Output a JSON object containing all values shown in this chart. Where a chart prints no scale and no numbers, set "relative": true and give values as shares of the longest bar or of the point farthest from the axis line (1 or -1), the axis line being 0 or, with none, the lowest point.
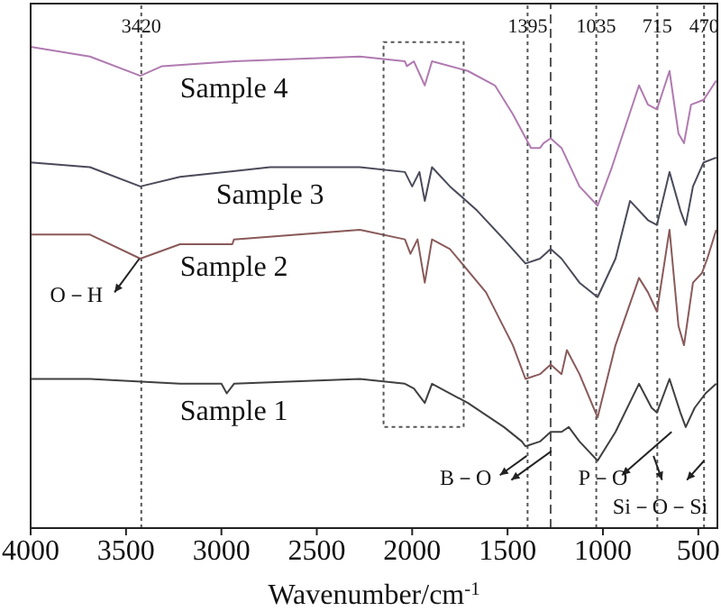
{
  "chart_data": {
    "type": "line",
    "relative": true,
    "xlabel": "Wavenumber/cm$^{-1}$",
    "xlim": [
      4000,
      400
    ],
    "xticks": [
      4000,
      3500,
      3000,
      2500,
      2000,
      1500,
      1000,
      500
    ],
    "tick_labels": "x",
    "grid": false,
    "legend": false,
    "marker": "none",
    "line_style": "solid",
    "series": [
      {
        "name": "Sample 1",
        "color": "#404040",
        "x": [
          4000,
          3689,
          3217,
          3000,
          2972,
          2934,
          2274,
          2038,
          1991,
          1934,
          1896,
          1708,
          1519,
          1425,
          1406,
          1330,
          1274,
          1217,
          1179,
          1123,
          1028,
          934,
          811,
          745,
          717,
          651,
          594,
          566,
          519,
          462,
          406
        ],
        "values": [
          0.31,
          0.31,
          0.3,
          0.3,
          0.28,
          0.3,
          0.31,
          0.3,
          0.29,
          0.26,
          0.3,
          0.26,
          0.21,
          0.18,
          0.17,
          0.18,
          0.2,
          0.2,
          0.21,
          0.18,
          0.14,
          0.2,
          0.3,
          0.25,
          0.24,
          0.31,
          0.24,
          0.21,
          0.25,
          0.28,
          0.3
        ]
      },
      {
        "name": "Sample 2",
        "color": "#8a5a5a",
        "x": [
          4000,
          3689,
          3425,
          3217,
          2943,
          2934,
          2274,
          2038,
          2009,
          1972,
          1934,
          1896,
          1802,
          1613,
          1472,
          1406,
          1330,
          1274,
          1217,
          1189,
          1123,
          1028,
          934,
          811,
          764,
          717,
          651,
          604,
          575,
          528,
          481,
          453,
          406
        ],
        "values": [
          0.61,
          0.61,
          0.56,
          0.59,
          0.59,
          0.6,
          0.62,
          0.6,
          0.57,
          0.6,
          0.51,
          0.6,
          0.58,
          0.49,
          0.38,
          0.31,
          0.32,
          0.34,
          0.32,
          0.37,
          0.32,
          0.23,
          0.38,
          0.52,
          0.49,
          0.45,
          0.62,
          0.42,
          0.38,
          0.51,
          0.53,
          0.56,
          0.62
        ]
      },
      {
        "name": "Sample 3",
        "color": "#4a4a5a",
        "x": [
          4000,
          3689,
          3425,
          3217,
          2745,
          2274,
          2038,
          2000,
          1962,
          1934,
          1896,
          1802,
          1660,
          1519,
          1406,
          1330,
          1274,
          1217,
          1123,
          1028,
          934,
          858,
          764,
          717,
          651,
          594,
          566,
          528,
          472,
          406
        ],
        "values": [
          0.76,
          0.75,
          0.71,
          0.73,
          0.75,
          0.75,
          0.74,
          0.71,
          0.74,
          0.68,
          0.75,
          0.71,
          0.66,
          0.6,
          0.55,
          0.56,
          0.58,
          0.56,
          0.51,
          0.48,
          0.56,
          0.68,
          0.64,
          0.63,
          0.74,
          0.66,
          0.63,
          0.71,
          0.76,
          0.77
        ]
      },
      {
        "name": "Sample 4",
        "color": "#b07ab0",
        "x": [
          4000,
          3689,
          3425,
          3311,
          2934,
          2274,
          2038,
          2028,
          1991,
          1934,
          1896,
          1708,
          1566,
          1472,
          1377,
          1330,
          1311,
          1274,
          1217,
          1123,
          1028,
          953,
          811,
          764,
          717,
          651,
          604,
          575,
          538,
          472,
          406
        ],
        "values": [
          1.0,
          0.98,
          0.94,
          0.96,
          0.97,
          0.98,
          0.97,
          0.96,
          0.97,
          0.92,
          0.97,
          0.95,
          0.92,
          0.86,
          0.79,
          0.79,
          0.8,
          0.81,
          0.79,
          0.71,
          0.67,
          0.75,
          0.92,
          0.88,
          0.87,
          0.95,
          0.82,
          0.8,
          0.88,
          0.89,
          0.93
        ]
      }
    ],
    "ref_lines": [
      {
        "axis": "x",
        "value": 3420,
        "label": "3420",
        "line_style": "dotted",
        "color": "#555555"
      },
      {
        "axis": "x",
        "value": 1395,
        "label": "1395",
        "line_style": "dotted",
        "color": "#555555"
      },
      {
        "axis": "x",
        "value": 1274,
        "label": null,
        "line_style": "dashed",
        "color": "#555555"
      },
      {
        "axis": "x",
        "value": 1035,
        "label": "1035",
        "line_style": "dotted",
        "color": "#555555"
      },
      {
        "axis": "x",
        "value": 715,
        "label": "715",
        "line_style": "dotted",
        "color": "#555555"
      },
      {
        "axis": "x",
        "value": 470,
        "label": "470",
        "line_style": "dotted",
        "color": "#555555"
      }
    ],
    "annotations": [
      "O－H",
      "B－O",
      "P－O",
      "Si－O－Si"
    ]
  }
}
